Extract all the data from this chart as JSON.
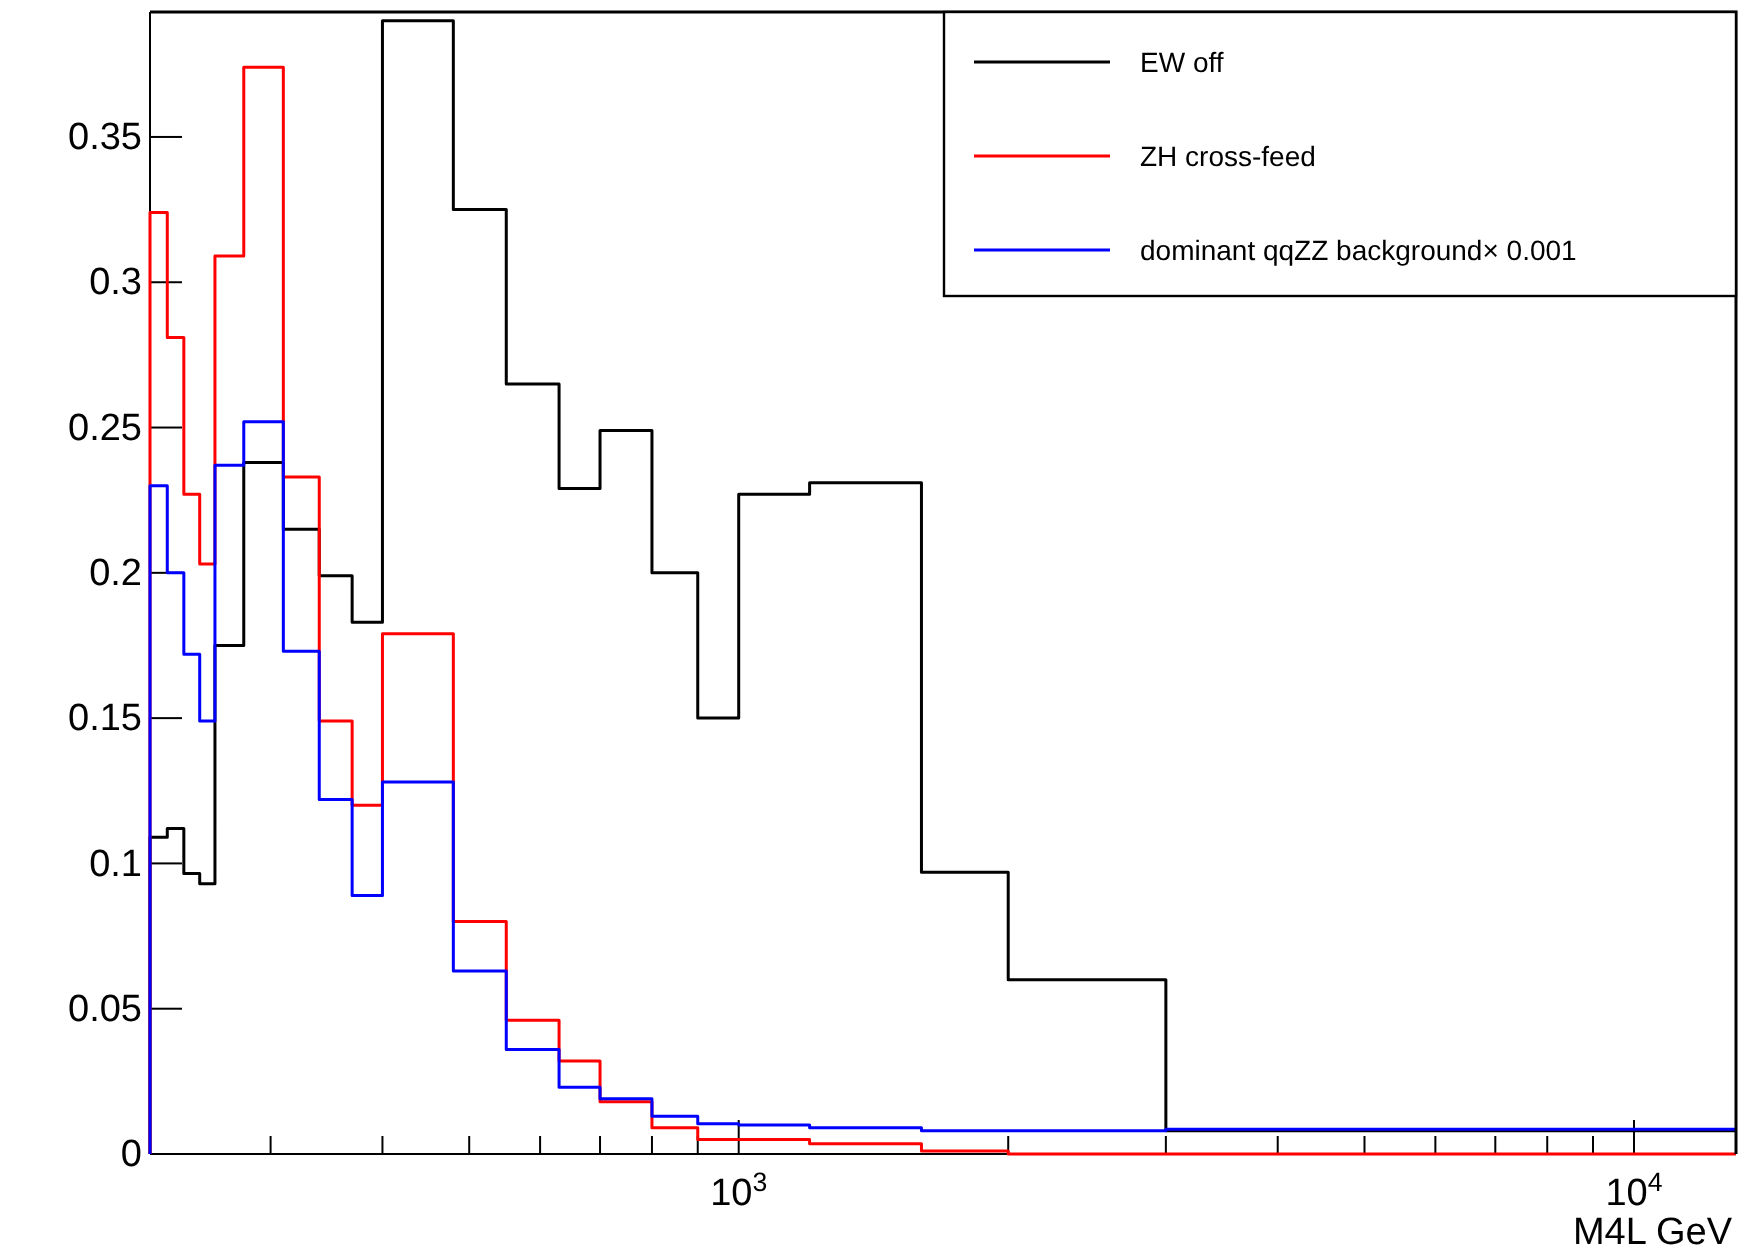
{
  "chart_data": {
    "type": "histogram",
    "xlabel": "M4L GeV",
    "log": "x",
    "legend": "top right",
    "grid": false,
    "bins": [
      220,
      230,
      240,
      250,
      260,
      280,
      310,
      340,
      370,
      400,
      480,
      550,
      630,
      700,
      800,
      900,
      1000,
      1200,
      1600,
      2000,
      3000,
      13000
    ],
    "series": [
      {
        "name": "EW off",
        "color": "#000000",
        "values": [
          0.109,
          0.112,
          0.0965,
          0.093,
          0.175,
          0.238,
          0.215,
          0.199,
          0.183,
          0.39,
          0.325,
          0.265,
          0.229,
          0.249,
          0.2,
          0.15,
          0.227,
          0.231,
          0.097,
          0.06,
          0.008
        ]
      },
      {
        "name": "ZH cross-feed",
        "color": "#ff0000",
        "values": [
          0.324,
          0.281,
          0.227,
          0.203,
          0.309,
          0.374,
          0.233,
          0.149,
          0.12,
          0.179,
          0.08,
          0.046,
          0.032,
          0.018,
          0.009,
          0.005,
          0.005,
          0.0035,
          0.001,
          0,
          0
        ]
      },
      {
        "name": "dominant qqZZ background× 0.001",
        "color": "#0000ff",
        "values": [
          0.23,
          0.2,
          0.172,
          0.149,
          0.237,
          0.252,
          0.173,
          0.122,
          0.089,
          0.128,
          0.063,
          0.036,
          0.023,
          0.019,
          0.013,
          0.0104,
          0.01,
          0.009,
          0.008,
          0.008,
          0.0085
        ]
      }
    ],
    "xlim": [
      220,
      13000
    ],
    "ylim": [
      0,
      0.393
    ],
    "xticks": [
      {
        "value": 300,
        "label": null
      },
      {
        "value": 400,
        "label": null
      },
      {
        "value": 500,
        "label": null
      },
      {
        "value": 600,
        "label": null
      },
      {
        "value": 700,
        "label": null
      },
      {
        "value": 800,
        "label": null
      },
      {
        "value": 900,
        "label": null
      },
      {
        "value": 1000,
        "label": "10$^{3}$"
      },
      {
        "value": 2000,
        "label": null
      },
      {
        "value": 3000,
        "label": null
      },
      {
        "value": 4000,
        "label": null
      },
      {
        "value": 5000,
        "label": null
      },
      {
        "value": 6000,
        "label": null
      },
      {
        "value": 7000,
        "label": null
      },
      {
        "value": 8000,
        "label": null
      },
      {
        "value": 9000,
        "label": null
      },
      {
        "value": 10000,
        "label": "10$^{4}$"
      }
    ],
    "yticks": [
      0,
      0.05,
      0.1,
      0.15,
      0.2,
      0.25,
      0.3,
      0.35
    ]
  }
}
